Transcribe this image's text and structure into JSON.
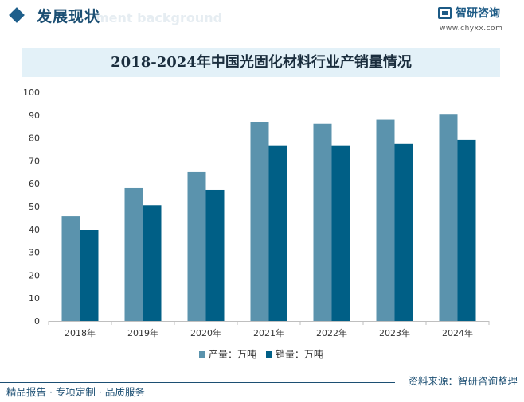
{
  "header": {
    "title": "发展现状",
    "subtitle_watermark": "ment background",
    "logo_name": "智研咨询",
    "logo_url": "www.chyxx.com",
    "logo_icon": "chyxx-logo-icon"
  },
  "chart_data": {
    "type": "bar",
    "title": "2018-2024年中国光固化材料行业产销量情况",
    "categories": [
      "2018年",
      "2019年",
      "2020年",
      "2021年",
      "2022年",
      "2023年",
      "2024年"
    ],
    "series": [
      {
        "name": "产量：万吨",
        "color": "#5b93ad",
        "values": [
          45.8,
          58,
          65.3,
          87,
          86.2,
          88,
          90.2
        ]
      },
      {
        "name": "销量：万吨",
        "color": "#005f86",
        "values": [
          39.9,
          50.6,
          57.3,
          76.5,
          76.5,
          77.5,
          79.2
        ]
      }
    ],
    "ylim": [
      0,
      100
    ],
    "yticks": [
      0,
      10,
      20,
      30,
      40,
      50,
      60,
      70,
      80,
      90,
      100
    ],
    "xlabel": "",
    "ylabel": "",
    "grid": false,
    "legend_position": "bottom"
  },
  "legend": {
    "items": [
      "产量：万吨",
      "销量：万吨"
    ]
  },
  "source": "资料来源：智研咨询整理",
  "footer": "精品报告 · 专项定制 · 品质服务"
}
